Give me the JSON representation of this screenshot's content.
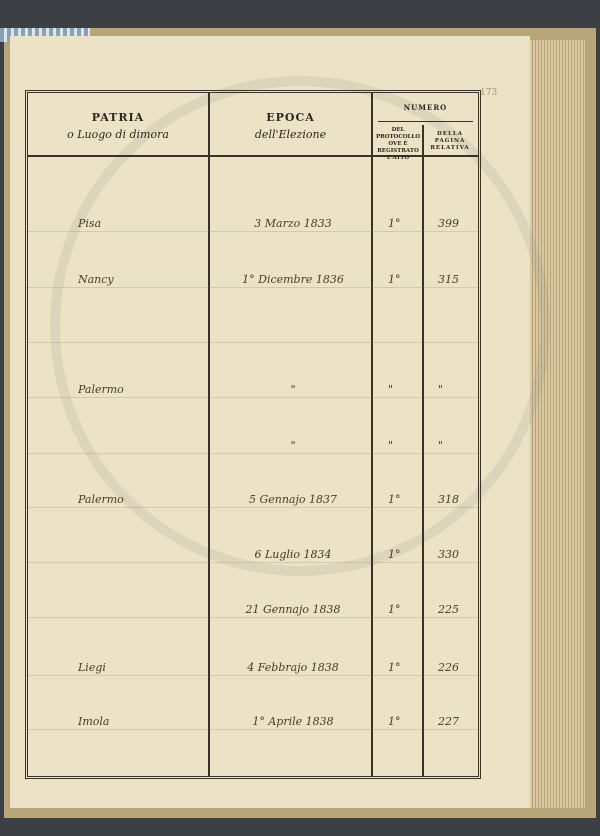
{
  "page_number": "173",
  "header": {
    "patria": "PATRIA",
    "patria_sub": "o Luogo di dimora",
    "epoca": "EPOCA",
    "epoca_sub": "dell'Elezione",
    "numero": "NUMERO",
    "protocollo": "DEL PROTOCOLLO OVE È REGISTRATO L'ATTO",
    "pagina": "DELLA PAGINA RELATIVA"
  },
  "rows": [
    {
      "patria": "Pisa",
      "epoca": "3 Marzo 1833",
      "protocollo": "1°",
      "pagina": "399"
    },
    {
      "patria": "Nancy",
      "epoca": "1° Dicembre 1836",
      "protocollo": "1°",
      "pagina": "315"
    },
    {
      "patria": "",
      "epoca": "",
      "protocollo": "",
      "pagina": ""
    },
    {
      "patria": "Palermo",
      "epoca": "\"",
      "protocollo": "\"",
      "pagina": "\""
    },
    {
      "patria": "",
      "epoca": "\"",
      "protocollo": "\"",
      "pagina": "\""
    },
    {
      "patria": "Palermo",
      "epoca": "5 Gennajo 1837",
      "protocollo": "1°",
      "pagina": "318"
    },
    {
      "patria": "",
      "epoca": "6 Luglio 1834",
      "protocollo": "1°",
      "pagina": "330"
    },
    {
      "patria": "",
      "epoca": "21 Gennajo 1838",
      "protocollo": "1°",
      "pagina": "225"
    },
    {
      "patria": "Liegi",
      "epoca": "4 Febbrajo 1838",
      "protocollo": "1°",
      "pagina": "226"
    },
    {
      "patria": "Imola",
      "epoca": "1° Aprile 1838",
      "protocollo": "1°",
      "pagina": "227"
    }
  ]
}
